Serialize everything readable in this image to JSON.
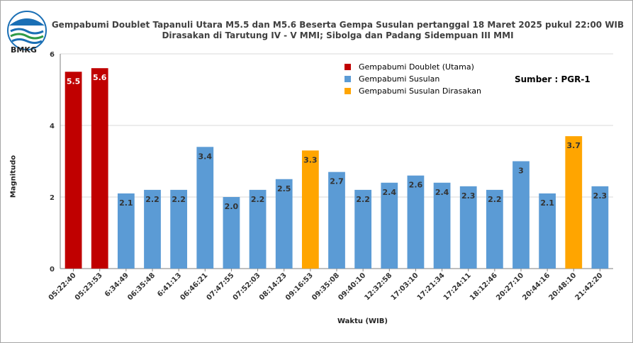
{
  "logo_text": "BMKG",
  "source_label": "Sumber : PGR-1",
  "colors": {
    "main": "#c00000",
    "aftershock": "#5b9bd5",
    "felt": "#ffa500"
  },
  "chart_data": {
    "type": "bar",
    "title": "Gempabumi Doublet Tapanuli Utara M5.5 dan M5.6 Beserta Gempa Susulan pertanggal 18 Maret 2025 pukul 22:00 WIB",
    "subtitle": "Dirasakan di Tarutung IV - V MMI; Sibolga dan Padang Sidempuan III MMI",
    "xlabel": "Waktu (WIB)",
    "ylabel": "Magnitudo",
    "ylim": [
      0,
      6
    ],
    "yticks": [
      0,
      2,
      4,
      6
    ],
    "grid": true,
    "legend_position": "top-right",
    "legend": [
      {
        "label": "Gempabumi Doublet (Utama)",
        "group": "main"
      },
      {
        "label": "Gempabumi Susulan",
        "group": "aftershock"
      },
      {
        "label": "Gempabumi Susulan Dirasakan",
        "group": "felt"
      }
    ],
    "categories": [
      "05:22:40",
      "05:23:53",
      "6:34:49",
      "06:35:48",
      "6:41:13",
      "06:46:21",
      "07:47:55",
      "07:52:03",
      "08:14:23",
      "09:16:53",
      "09:35:08",
      "09:40:10",
      "12:32:58",
      "17:03:10",
      "17:21:34",
      "17:24:11",
      "18:12:46",
      "20:27:10",
      "20:44:16",
      "20:48:10",
      "21:42:20"
    ],
    "values": [
      5.5,
      5.6,
      2.1,
      2.2,
      2.2,
      3.4,
      2.0,
      2.2,
      2.5,
      3.3,
      2.7,
      2.2,
      2.4,
      2.6,
      2.4,
      2.3,
      2.2,
      3,
      2.1,
      3.7,
      2.3
    ],
    "labels": [
      "5.5",
      "5.6",
      "2.1",
      "2.2",
      "2.2",
      "3.4",
      "2.0",
      "2.2",
      "2.5",
      "3.3",
      "2.7",
      "2.2",
      "2.4",
      "2.6",
      "2.4",
      "2.3",
      "2.2",
      "3",
      "2.1",
      "3.7",
      "2.3"
    ],
    "groups": [
      "main",
      "main",
      "aftershock",
      "aftershock",
      "aftershock",
      "aftershock",
      "aftershock",
      "aftershock",
      "aftershock",
      "felt",
      "aftershock",
      "aftershock",
      "aftershock",
      "aftershock",
      "aftershock",
      "aftershock",
      "aftershock",
      "aftershock",
      "aftershock",
      "felt",
      "aftershock"
    ]
  }
}
